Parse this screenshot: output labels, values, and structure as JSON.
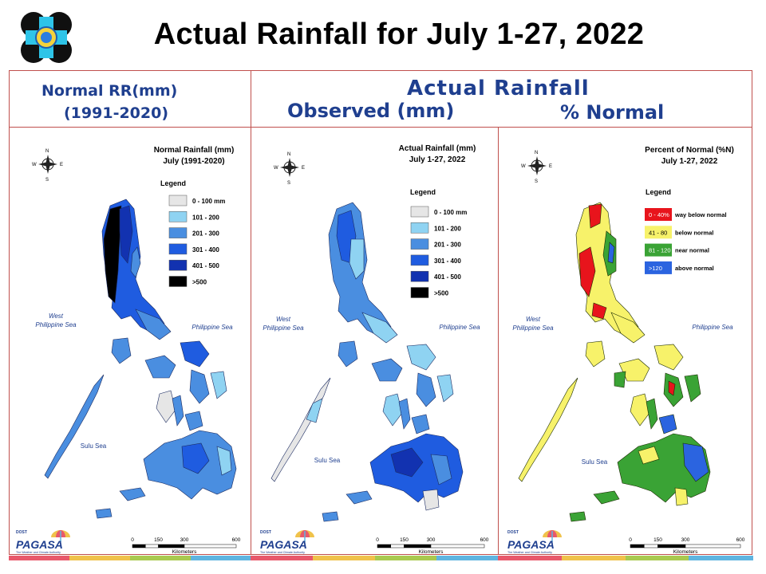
{
  "slide_title": "Actual Rainfall for July 1-27, 2022",
  "header_left": {
    "line1": "Normal RR(mm)",
    "line2": "(1991-2020)"
  },
  "header_right": {
    "main": "Actual Rainfall",
    "sub_left": "Observed (mm)",
    "sub_right": "% Normal"
  },
  "compass": {
    "n": "N",
    "s": "S",
    "e": "E",
    "w": "W"
  },
  "sea_labels": {
    "west_1": "West",
    "west_2": "Philippine Sea",
    "east": "Philippine Sea",
    "sulu": "Sulu Sea"
  },
  "scale": {
    "ticks": [
      "0",
      "150",
      "300",
      "600"
    ],
    "unit": "Kilometers"
  },
  "brand": {
    "org": "PAGASA",
    "small": "DOST",
    "tag": "The Weather and Climate Authority"
  },
  "colors": {
    "frame": "#c0504d",
    "header_text": "#1f3f8f",
    "stripes": [
      "#e8596b",
      "#f0c24b",
      "#a9c94f",
      "#5fb4e0"
    ]
  },
  "maps": [
    {
      "title_1": "Normal Rainfall (mm)",
      "title_2": "July (1991-2020)",
      "legend_title": "Legend",
      "legend": [
        {
          "label": "0 - 100 mm",
          "color": "#e6e6e6"
        },
        {
          "label": "101 - 200",
          "color": "#8fd3f2"
        },
        {
          "label": "201 - 300",
          "color": "#4a8ee0"
        },
        {
          "label": "301 - 400",
          "color": "#1f5ce0"
        },
        {
          "label": "401 - 500",
          "color": "#1232b0"
        },
        {
          "label": ">500",
          "color": "#000000"
        }
      ]
    },
    {
      "title_1": "Actual Rainfall (mm)",
      "title_2": "July 1-27, 2022",
      "legend_title": "Legend",
      "legend": [
        {
          "label": "0 - 100 mm",
          "color": "#e6e6e6"
        },
        {
          "label": "101 - 200",
          "color": "#8fd3f2"
        },
        {
          "label": "201 - 300",
          "color": "#4a8ee0"
        },
        {
          "label": "301 - 400",
          "color": "#1f5ce0"
        },
        {
          "label": "401 - 500",
          "color": "#1232b0"
        },
        {
          "label": ">500",
          "color": "#000000"
        }
      ]
    },
    {
      "title_1": "Percent of Normal (%N)",
      "title_2": "July 1-27, 2022",
      "legend_title": "Legend",
      "legend": [
        {
          "label": "0 - 40%",
          "desc": "way below normal",
          "color": "#e8141c",
          "text": "#ffffff"
        },
        {
          "label": "41 - 80",
          "desc": "below normal",
          "color": "#f7f26a",
          "text": "#000000"
        },
        {
          "label": "81 - 120",
          "desc": "near normal",
          "color": "#3aa335",
          "text": "#ffffff"
        },
        {
          "label": ">120",
          "desc": "above normal",
          "color": "#2b64e0",
          "text": "#ffffff"
        }
      ]
    }
  ]
}
